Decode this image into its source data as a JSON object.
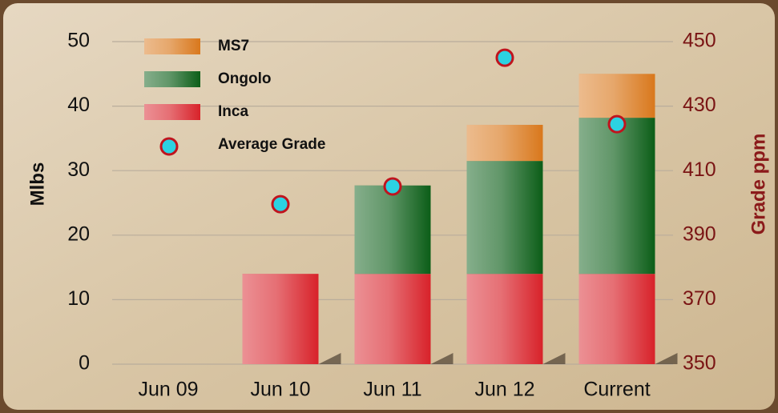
{
  "chart_data": {
    "type": "bar",
    "stacked": true,
    "categories": [
      "Jun 09",
      "Jun 10",
      "Jun 11",
      "Jun 12",
      "Current"
    ],
    "series": [
      {
        "name": "Inca",
        "color": "#d8222a",
        "values": [
          null,
          14,
          14,
          14,
          14
        ]
      },
      {
        "name": "Ongolo",
        "color": "#0c5e18",
        "values": [
          null,
          null,
          13.7,
          17.5,
          24.2
        ]
      },
      {
        "name": "MS7",
        "color": "#d9781c",
        "values": [
          null,
          null,
          null,
          5.6,
          6.8
        ]
      },
      {
        "name": "Average Grade",
        "type": "scatter",
        "axis": "y2",
        "color": "#2cd2e2",
        "edge_color": "#c0141e",
        "values": [
          null,
          399.6,
          405.1,
          445,
          424.4
        ]
      }
    ],
    "ylabel": "Mlbs",
    "y2label": "Grade ppm",
    "ylim": [
      0,
      50
    ],
    "yticks": [
      0,
      10,
      20,
      30,
      40,
      50
    ],
    "y2lim": [
      350,
      450
    ],
    "y2ticks": [
      350,
      370,
      390,
      410,
      430,
      450
    ],
    "grid": true,
    "legend": "upper left"
  }
}
